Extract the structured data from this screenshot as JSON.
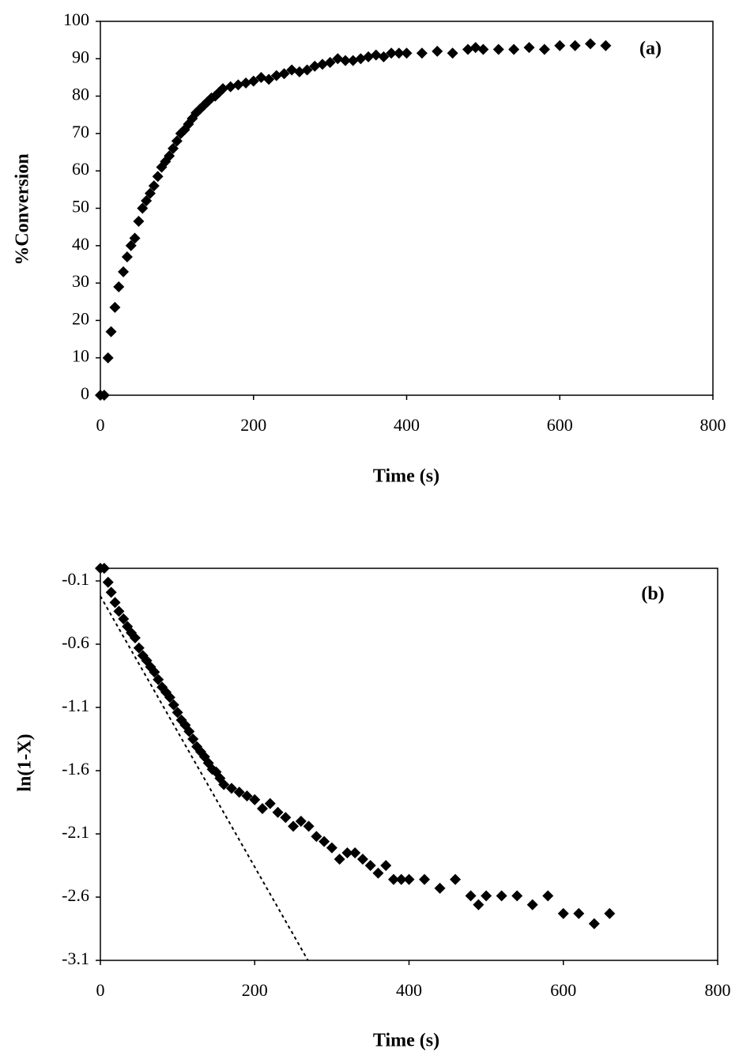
{
  "chart_data": [
    {
      "type": "scatter",
      "label": "(a)",
      "xlabel": "Time (s)",
      "ylabel": "%Conversion",
      "xlim": [
        0,
        800
      ],
      "xticks": [
        0,
        200,
        400,
        600,
        800
      ],
      "ylim": [
        0,
        100
      ],
      "yticks": [
        0,
        10,
        20,
        30,
        40,
        50,
        60,
        70,
        80,
        90,
        100
      ],
      "marker": "diamond",
      "series": [
        {
          "color": "#000000",
          "style": "markers",
          "x": [
            0,
            5,
            10,
            14,
            19,
            24,
            30,
            35,
            40,
            45,
            50,
            55,
            60,
            65,
            70,
            75,
            80,
            85,
            90,
            95,
            100,
            105,
            110,
            115,
            120,
            125,
            130,
            135,
            140,
            145,
            150,
            155,
            160,
            170,
            180,
            190,
            200,
            210,
            220,
            230,
            240,
            250,
            260,
            270,
            280,
            290,
            300,
            310,
            320,
            330,
            340,
            350,
            360,
            370,
            380,
            390,
            400,
            420,
            440,
            460,
            480,
            490,
            500,
            520,
            540,
            560,
            580,
            600,
            620,
            640,
            660
          ],
          "values": [
            0,
            0,
            10,
            17,
            23.5,
            29,
            33,
            37,
            40,
            42,
            46.5,
            50,
            52,
            54,
            56,
            58.5,
            61,
            62.5,
            64,
            66,
            68,
            70,
            71,
            72.5,
            74,
            75.5,
            76.5,
            77.5,
            78.5,
            79.5,
            80,
            81,
            82,
            82.5,
            83,
            83.5,
            84,
            85,
            84.5,
            85.5,
            86,
            87,
            86.5,
            87,
            88,
            88.5,
            89,
            90,
            89.5,
            89.5,
            90,
            90.5,
            91,
            90.5,
            91.5,
            91.5,
            91.5,
            91.5,
            92,
            91.5,
            92.5,
            93,
            92.5,
            92.5,
            92.5,
            93,
            92.5,
            93.5,
            93.5,
            94,
            93.5
          ]
        }
      ]
    },
    {
      "type": "scatter",
      "label": "(b)",
      "xlabel": "Time (s)",
      "ylabel": "ln(1-X)",
      "xlim": [
        0,
        800
      ],
      "xticks": [
        0,
        200,
        400,
        600,
        800
      ],
      "ylim": [
        -3.1,
        0
      ],
      "yticks": [
        -3.1,
        -2.6,
        -2.1,
        -1.6,
        -1.1,
        -0.6,
        -0.1
      ],
      "marker": "diamond",
      "series": [
        {
          "color": "#000000",
          "style": "markers",
          "x": [
            0,
            5,
            10,
            14,
            19,
            24,
            30,
            35,
            40,
            45,
            50,
            55,
            60,
            65,
            70,
            75,
            80,
            85,
            90,
            95,
            100,
            105,
            110,
            115,
            120,
            125,
            130,
            135,
            140,
            145,
            150,
            155,
            160,
            170,
            180,
            190,
            200,
            210,
            220,
            230,
            240,
            250,
            260,
            270,
            280,
            290,
            300,
            310,
            320,
            330,
            340,
            350,
            360,
            370,
            380,
            390,
            400,
            420,
            440,
            460,
            480,
            490,
            500,
            520,
            540,
            560,
            580,
            600,
            620,
            640,
            660
          ],
          "values": [
            0,
            0,
            -0.11,
            -0.19,
            -0.27,
            -0.34,
            -0.4,
            -0.46,
            -0.51,
            -0.55,
            -0.63,
            -0.69,
            -0.73,
            -0.78,
            -0.82,
            -0.88,
            -0.94,
            -0.98,
            -1.02,
            -1.08,
            -1.14,
            -1.2,
            -1.24,
            -1.29,
            -1.35,
            -1.41,
            -1.45,
            -1.49,
            -1.54,
            -1.59,
            -1.61,
            -1.66,
            -1.71,
            -1.74,
            -1.77,
            -1.8,
            -1.83,
            -1.9,
            -1.86,
            -1.93,
            -1.97,
            -2.04,
            -2.0,
            -2.04,
            -2.12,
            -2.16,
            -2.21,
            -2.3,
            -2.25,
            -2.25,
            -2.3,
            -2.35,
            -2.41,
            -2.35,
            -2.46,
            -2.46,
            -2.46,
            -2.46,
            -2.53,
            -2.46,
            -2.59,
            -2.66,
            -2.59,
            -2.59,
            -2.59,
            -2.66,
            -2.59,
            -2.73,
            -2.73,
            -2.81,
            -2.73
          ]
        },
        {
          "color": "#000000",
          "style": "dashed",
          "x": [
            0,
            269
          ],
          "values": [
            -0.22,
            -3.1
          ]
        }
      ]
    }
  ]
}
